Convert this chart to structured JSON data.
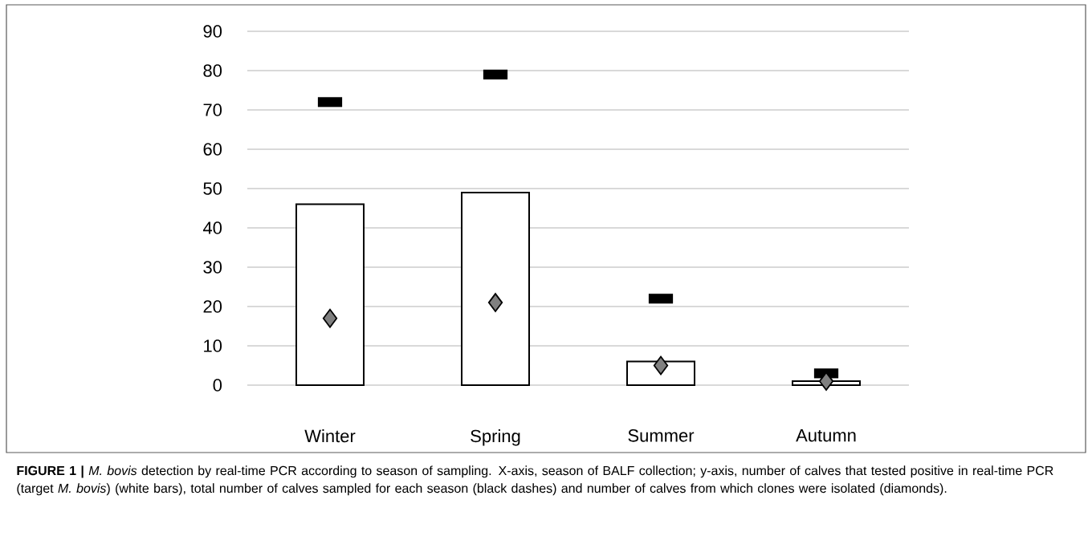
{
  "chart_data": {
    "type": "bar",
    "categories": [
      "Winter",
      "Spring",
      "Summer",
      "Autumn"
    ],
    "series": [
      {
        "color": "#ffffff",
        "values": [
          46,
          49,
          6,
          1
        ]
      },
      {
        "type": "scatter",
        "marker": "square",
        "color": "#000000",
        "values": [
          72,
          79,
          22,
          3
        ]
      },
      {
        "type": "scatter",
        "marker": "diamond",
        "color": "#808080",
        "values": [
          17,
          21,
          5,
          1
        ]
      }
    ],
    "ylim": [
      0,
      90
    ],
    "yticks": [
      0,
      10,
      20,
      30,
      40,
      50,
      60,
      70,
      80,
      90
    ],
    "grid": "y",
    "annotations": [
      "**FIGURE 1 |** *M. bovis* detection by real-time PCR according to season of sampling. X-axis, season of BALF collection; y-axis, number of calves that tested positive in real-time PCR (target *M. bovis*) (white bars), total number of calves sampled for each season (black dashes) and number of calves from which clones were isolated (diamonds)."
    ]
  }
}
